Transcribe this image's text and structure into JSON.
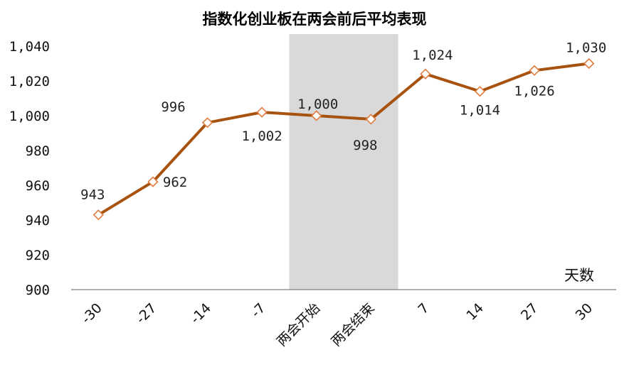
{
  "chart_data": {
    "type": "line",
    "title": "指数化创业板在两会前后平均表现",
    "xlabel": "天数",
    "ylabel": "",
    "categories": [
      "-30",
      "-27",
      "-14",
      "-7",
      "两会开始",
      "两会结束",
      "7",
      "14",
      "27",
      "30"
    ],
    "series": [
      {
        "values": [
          943,
          962,
          996,
          1002,
          1000,
          998,
          1024,
          1014,
          1026,
          1030
        ],
        "data_labels": [
          "943",
          "962",
          "996",
          "1,002",
          "1,000",
          "998",
          "1,024",
          "1,014",
          "1,026",
          "1,030"
        ]
      }
    ],
    "ylim": [
      900,
      1040
    ],
    "yticks": [
      900,
      920,
      940,
      960,
      980,
      1000,
      1020,
      1040
    ],
    "ytick_labels": [
      "900",
      "920",
      "940",
      "960",
      "980",
      "1,000",
      "1,020",
      "1,040"
    ],
    "highlight_band": {
      "from": "两会开始",
      "to": "两会结束"
    },
    "grid": false,
    "legend": "none",
    "colors": {
      "line": "#A8520F",
      "marker_fill": "#ffffff",
      "marker_edge": "#E07C3E",
      "band": "#d9d9d9",
      "axis": "#7f7f7f"
    }
  }
}
